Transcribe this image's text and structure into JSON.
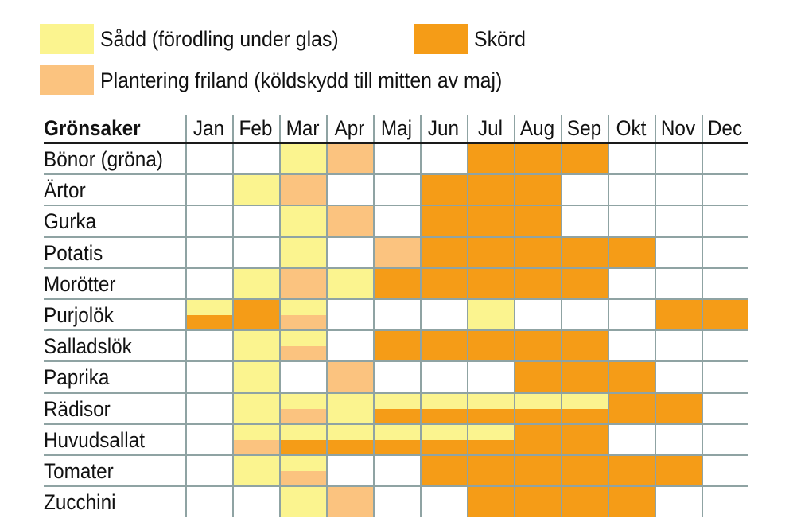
{
  "legend": [
    {
      "key": "sow",
      "label": "Sådd (förodling under glas)",
      "color": "#fbf48f"
    },
    {
      "key": "harvest",
      "label": "Skörd",
      "color": "#f59c17"
    },
    {
      "key": "plant",
      "label": "Plantering friland (köldskydd till mitten av maj)",
      "color": "#fbc37f"
    }
  ],
  "chart_data": {
    "type": "table",
    "row_header": "Grönsaker",
    "months": [
      "Jan",
      "Feb",
      "Mar",
      "Apr",
      "Maj",
      "Jun",
      "Jul",
      "Aug",
      "Sep",
      "Okt",
      "Nov",
      "Dec"
    ],
    "colors": {
      "sow": "#fbf48f",
      "plant": "#fbc37f",
      "harvest": "#f59c17"
    },
    "rows": [
      {
        "name": "Bönor (gröna)",
        "cells": [
          [],
          [],
          [
            "sow"
          ],
          [
            "plant"
          ],
          [],
          [],
          [
            "harvest"
          ],
          [
            "harvest"
          ],
          [
            "harvest"
          ],
          [],
          [],
          []
        ]
      },
      {
        "name": "Ärtor",
        "cells": [
          [],
          [
            "sow"
          ],
          [
            "plant"
          ],
          [],
          [],
          [
            "harvest"
          ],
          [
            "harvest"
          ],
          [
            "harvest"
          ],
          [],
          [],
          [],
          []
        ]
      },
      {
        "name": "Gurka",
        "cells": [
          [],
          [],
          [
            "sow"
          ],
          [
            "plant"
          ],
          [],
          [
            "harvest"
          ],
          [
            "harvest"
          ],
          [
            "harvest"
          ],
          [],
          [],
          [],
          []
        ]
      },
      {
        "name": "Potatis",
        "cells": [
          [],
          [],
          [
            "sow"
          ],
          [],
          [
            "plant"
          ],
          [
            "harvest"
          ],
          [
            "harvest"
          ],
          [
            "harvest"
          ],
          [
            "harvest"
          ],
          [
            "harvest"
          ],
          [],
          []
        ]
      },
      {
        "name": "Morötter",
        "cells": [
          [],
          [
            "sow"
          ],
          [
            "plant"
          ],
          [
            "sow"
          ],
          [
            "harvest"
          ],
          [
            "harvest"
          ],
          [
            "harvest"
          ],
          [
            "harvest"
          ],
          [
            "harvest"
          ],
          [],
          [],
          []
        ]
      },
      {
        "name": "Purjolök",
        "cells": [
          [
            "sow",
            "harvest"
          ],
          [
            "harvest"
          ],
          [
            "sow",
            "plant"
          ],
          [],
          [],
          [],
          [
            "sow"
          ],
          [],
          [],
          [],
          [
            "harvest"
          ],
          [
            "harvest"
          ]
        ]
      },
      {
        "name": "Salladslök",
        "cells": [
          [],
          [
            "sow"
          ],
          [
            "sow",
            "plant"
          ],
          [],
          [
            "harvest"
          ],
          [
            "harvest"
          ],
          [
            "harvest"
          ],
          [
            "harvest"
          ],
          [
            "harvest"
          ],
          [],
          [],
          []
        ]
      },
      {
        "name": "Paprika",
        "cells": [
          [],
          [
            "sow"
          ],
          [],
          [
            "plant"
          ],
          [],
          [],
          [],
          [
            "harvest"
          ],
          [
            "harvest"
          ],
          [
            "harvest"
          ],
          [],
          []
        ]
      },
      {
        "name": "Rädisor",
        "cells": [
          [],
          [
            "sow"
          ],
          [
            "sow",
            "plant"
          ],
          [
            "sow"
          ],
          [
            "sow",
            "harvest"
          ],
          [
            "sow",
            "harvest"
          ],
          [
            "sow",
            "harvest"
          ],
          [
            "sow",
            "harvest"
          ],
          [
            "sow",
            "harvest"
          ],
          [
            "harvest"
          ],
          [
            "harvest"
          ],
          []
        ]
      },
      {
        "name": "Huvudsallat",
        "cells": [
          [],
          [
            "sow",
            "plant"
          ],
          [
            "sow",
            "harvest"
          ],
          [
            "sow",
            "harvest"
          ],
          [
            "sow",
            "harvest"
          ],
          [
            "sow",
            "harvest"
          ],
          [
            "sow",
            "harvest"
          ],
          [
            "harvest"
          ],
          [
            "harvest"
          ],
          [],
          [],
          []
        ]
      },
      {
        "name": "Tomater",
        "cells": [
          [],
          [
            "sow"
          ],
          [
            "sow",
            "plant"
          ],
          [],
          [],
          [
            "harvest"
          ],
          [
            "harvest"
          ],
          [
            "harvest"
          ],
          [
            "harvest"
          ],
          [
            "harvest"
          ],
          [
            "harvest"
          ],
          []
        ]
      },
      {
        "name": "Zucchini",
        "cells": [
          [],
          [],
          [
            "sow"
          ],
          [
            "plant"
          ],
          [],
          [],
          [
            "harvest"
          ],
          [
            "harvest"
          ],
          [
            "harvest"
          ],
          [
            "harvest"
          ],
          [],
          []
        ]
      }
    ]
  }
}
